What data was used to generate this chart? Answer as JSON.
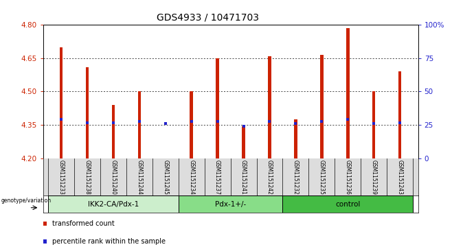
{
  "title": "GDS4933 / 10471703",
  "samples": [
    "GSM1151233",
    "GSM1151238",
    "GSM1151240",
    "GSM1151244",
    "GSM1151245",
    "GSM1151234",
    "GSM1151237",
    "GSM1151241",
    "GSM1151242",
    "GSM1151232",
    "GSM1151235",
    "GSM1151236",
    "GSM1151239",
    "GSM1151243"
  ],
  "bar_values": [
    4.7,
    4.61,
    4.44,
    4.5,
    4.2,
    4.5,
    4.65,
    4.345,
    4.66,
    4.375,
    4.665,
    4.785,
    4.5,
    4.59
  ],
  "dot_values": [
    4.375,
    4.36,
    4.36,
    4.365,
    4.355,
    4.365,
    4.365,
    4.345,
    4.365,
    4.355,
    4.365,
    4.375,
    4.355,
    4.36
  ],
  "bar_bottom": 4.2,
  "ylim": [
    4.2,
    4.8
  ],
  "yticks": [
    4.2,
    4.35,
    4.5,
    4.65,
    4.8
  ],
  "right_yticks": [
    0,
    25,
    50,
    75,
    100
  ],
  "right_ylabels": [
    "0",
    "25",
    "50",
    "75",
    "100%"
  ],
  "bar_color": "#cc2200",
  "dot_color": "#2222cc",
  "groups": [
    {
      "label": "IKK2-CA/Pdx-1",
      "start": 0,
      "end": 5,
      "color": "#cceecc"
    },
    {
      "label": "Pdx-1+/-",
      "start": 5,
      "end": 9,
      "color": "#88dd88"
    },
    {
      "label": "control",
      "start": 9,
      "end": 14,
      "color": "#44bb44"
    }
  ],
  "xlabel_bottom": "genotype/variation",
  "legend_items": [
    {
      "color": "#cc2200",
      "label": "transformed count"
    },
    {
      "color": "#2222cc",
      "label": "percentile rank within the sample"
    }
  ],
  "tick_label_color": "#cc2200",
  "right_tick_color": "#2222cc",
  "title_fontsize": 10,
  "tick_fontsize": 7.5,
  "bar_width": 0.12,
  "grid_style": "dotted",
  "bg_color": "#f0f0f0"
}
